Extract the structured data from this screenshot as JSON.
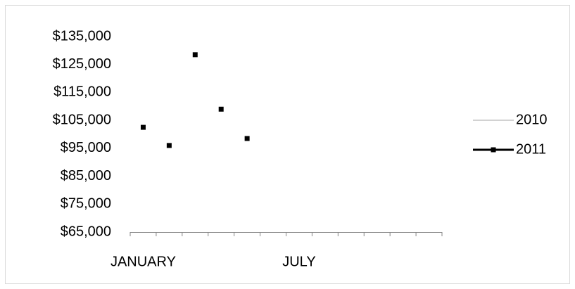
{
  "chart_data": {
    "type": "line",
    "categories": [
      "JANUARY",
      null,
      null,
      null,
      null,
      null,
      "JULY",
      null,
      null,
      null,
      null,
      null
    ],
    "series": [
      {
        "name": "2010",
        "color": "#a6a6a6",
        "values": [
          null,
          null,
          null,
          null,
          null,
          null,
          null,
          null,
          null,
          null,
          null,
          null
        ]
      },
      {
        "name": "2011",
        "color": "#000000",
        "values": [
          102500,
          96000,
          128500,
          109000,
          98500,
          null,
          null,
          null,
          null,
          null,
          null,
          null
        ]
      }
    ],
    "ylim": [
      65000,
      135000
    ],
    "yticks": [
      {
        "value": 65000,
        "label": "$65,000"
      },
      {
        "value": 75000,
        "label": "$75,000"
      },
      {
        "value": 85000,
        "label": "$85,000"
      },
      {
        "value": 95000,
        "label": "$95,000"
      },
      {
        "value": 105000,
        "label": "$105,000"
      },
      {
        "value": 115000,
        "label": "$115,000"
      },
      {
        "value": 125000,
        "label": "$125,000"
      },
      {
        "value": 135000,
        "label": "$135,000"
      }
    ],
    "grid": false,
    "legend": "right"
  }
}
